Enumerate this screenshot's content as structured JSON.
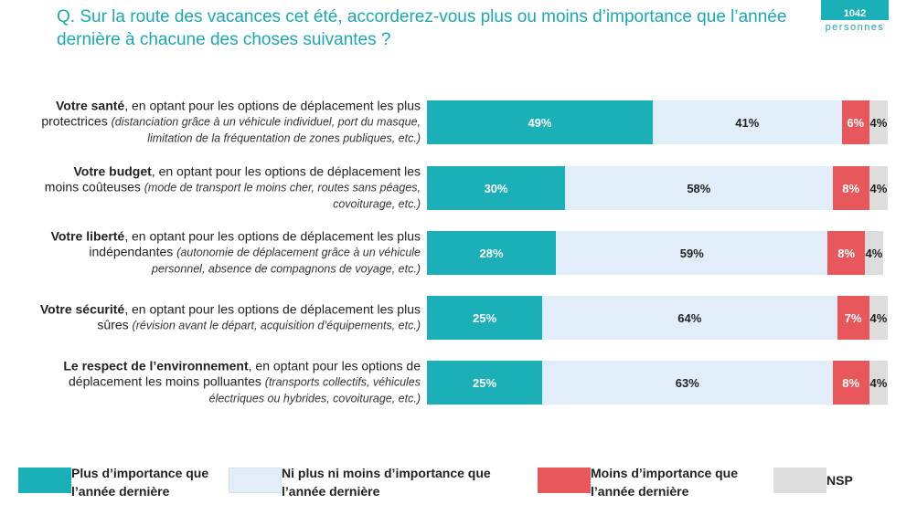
{
  "badge": {
    "count": "1042",
    "label": "personnes"
  },
  "chart_data": {
    "type": "stacked-bar-horizontal",
    "title": "Q. Sur la route des vacances cet été, accorderez-vous plus ou moins d’importance que l’année dernière à chacune des choses suivantes ?",
    "categories": [
      {
        "bold": "Votre santé",
        "text": ", en optant pour les options de déplacement les plus protectrices ",
        "note": "(distanciation grâce à un véhicule individuel, port du masque, limitation de la fréquentation de zones publiques, etc.)"
      },
      {
        "bold": "Votre budget",
        "text": ", en optant pour les options de déplacement les moins coûteuses ",
        "note": "(mode de transport le moins cher, routes sans péages, covoiturage, etc.)"
      },
      {
        "bold": "Votre liberté",
        "text": ", en optant pour les options de déplacement les plus indépendantes ",
        "note": "(autonomie de déplacement grâce à un véhicule personnel, absence de compagnons de voyage, etc.)"
      },
      {
        "bold": "Votre sécurité",
        "text": ", en optant pour les options de déplacement les plus sûres ",
        "note": "(révision avant le départ, acquisition d’équipements, etc.)"
      },
      {
        "bold": "Le respect de l’environnement",
        "text": ", en optant pour les options de déplacement les moins polluantes ",
        "note": "(transports collectifs, véhicules électriques ou hybrides, covoiturage, etc.)"
      }
    ],
    "series": [
      {
        "name": "Plus d’importance que l’année dernière",
        "color": "#1bb0b8",
        "values": [
          49,
          30,
          28,
          25,
          25
        ],
        "value_labels": [
          "49%",
          "30%",
          "28%",
          "25%",
          "25%"
        ]
      },
      {
        "name": "Ni plus ni moins d’importance que l’année dernière",
        "color": "#e1eef9",
        "values": [
          41,
          58,
          59,
          64,
          63
        ],
        "value_labels": [
          "41%",
          "58%",
          "59%",
          "64%",
          "63%"
        ]
      },
      {
        "name": "Moins d’importance que l’année dernière",
        "color": "#e8575c",
        "values": [
          6,
          8,
          8,
          7,
          8
        ],
        "value_labels": [
          "6%",
          "8%",
          "8%",
          "7%",
          "8%"
        ]
      },
      {
        "name": "NSP",
        "color": "#dddddd",
        "values": [
          4,
          4,
          4,
          4,
          4
        ],
        "value_labels": [
          "4%",
          "4%",
          "4%",
          "4%",
          "4%"
        ]
      }
    ]
  }
}
